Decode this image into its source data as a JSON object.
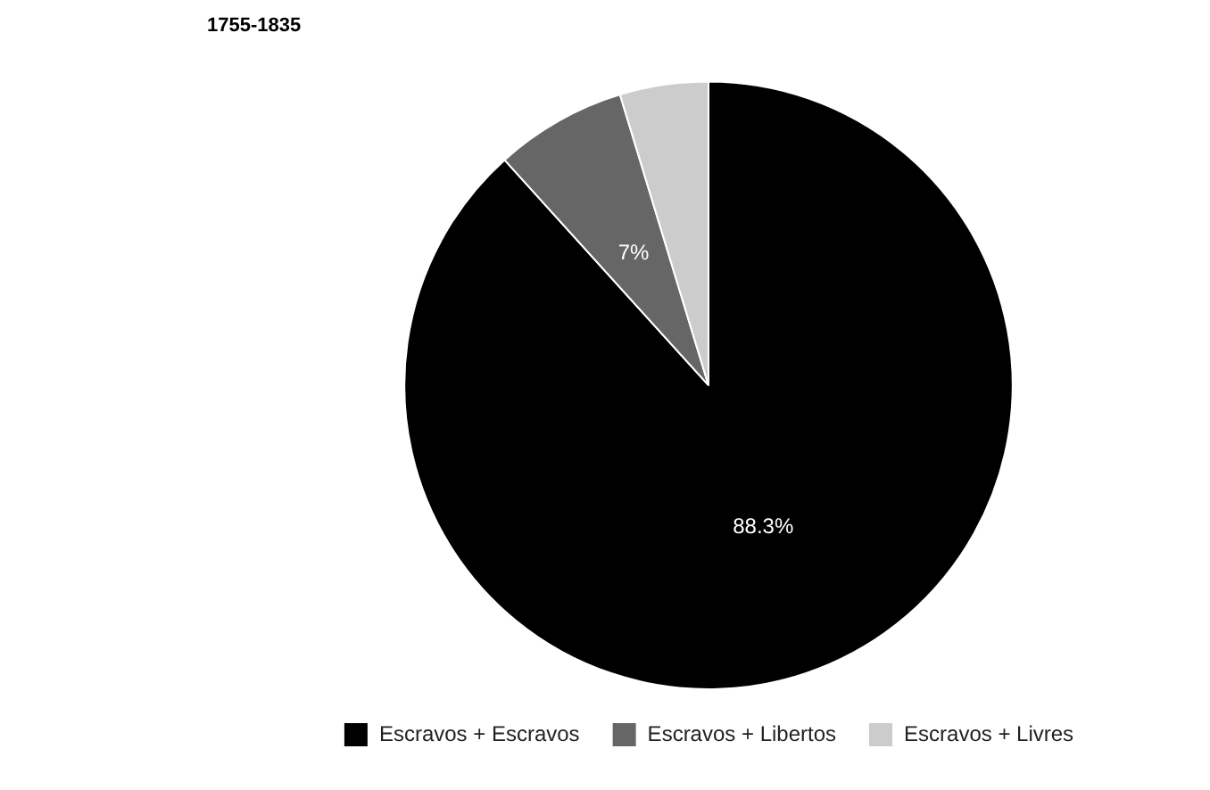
{
  "chart_data": {
    "type": "pie",
    "title": "1755-1835",
    "categories": [
      "Escravos + Escravos",
      "Escravos + Libertos",
      "Escravos + Livres"
    ],
    "values": [
      88.3,
      7,
      4.7
    ],
    "colors": [
      "#000000",
      "#666666",
      "#cccccc"
    ],
    "value_labels": [
      "88.3%",
      "7%",
      null
    ],
    "legend": "bottom"
  }
}
